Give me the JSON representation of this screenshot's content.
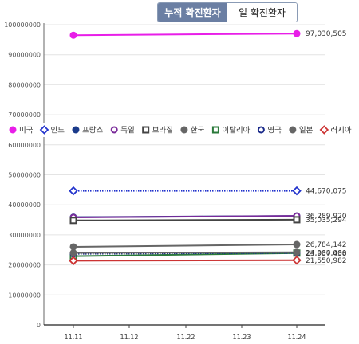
{
  "tabs": [
    {
      "label": "누적 확진환자",
      "active": true
    },
    {
      "label": "일 확진환자",
      "active": false
    }
  ],
  "chart_data": {
    "type": "line",
    "x": [
      "11.11",
      "11.12",
      "11.22",
      "11.23",
      "11.24"
    ],
    "ylim": [
      0,
      100000000
    ],
    "yticks": [
      0,
      10000000,
      20000000,
      30000000,
      40000000,
      50000000,
      60000000,
      70000000,
      80000000,
      90000000,
      100000000
    ],
    "legend_position": "middle",
    "series": [
      {
        "name": "미국",
        "color": "#e81ee8",
        "marker": "filled-circle",
        "style": "solid",
        "points": [
          [
            0,
            96500000
          ],
          [
            4,
            97030505
          ]
        ],
        "end_label": "97,030,505"
      },
      {
        "name": "인도",
        "color": "#2233cc",
        "marker": "open-diamond",
        "style": "dotted",
        "points": [
          [
            0,
            44670075
          ],
          [
            4,
            44670075
          ]
        ],
        "end_label": "44,670,075"
      },
      {
        "name": "프랑스",
        "color": "#1a3a8a",
        "marker": "filled-circle",
        "style": "solid",
        "points": [
          [
            0,
            35900000
          ],
          [
            4,
            36289920
          ]
        ],
        "end_label": "36,289,920"
      },
      {
        "name": "독일",
        "color": "#7a2a9a",
        "marker": "open-circle",
        "style": "solid",
        "points": [
          [
            0,
            35800000
          ],
          [
            4,
            36300000
          ]
        ],
        "end_label": ""
      },
      {
        "name": "브라질",
        "color": "#444444",
        "marker": "open-square",
        "style": "solid",
        "points": [
          [
            0,
            34800000
          ],
          [
            4,
            35035294
          ]
        ],
        "end_label": "35,035,294"
      },
      {
        "name": "한국",
        "color": "#666666",
        "marker": "filled-circle",
        "style": "solid",
        "points": [
          [
            0,
            26000000
          ],
          [
            4,
            26784142
          ]
        ],
        "end_label": "26,784,142"
      },
      {
        "name": "이탈리아",
        "color": "#2a7a3a",
        "marker": "open-square",
        "style": "solid",
        "points": [
          [
            0,
            22900000
          ],
          [
            4,
            23937438
          ]
        ],
        "end_label": "23,937,438"
      },
      {
        "name": "영국",
        "color": "#1a2a8a",
        "marker": "open-circle",
        "style": "dotted",
        "points": [
          [
            0,
            23700000
          ],
          [
            4,
            24000000
          ]
        ],
        "end_label": "24,000,000"
      },
      {
        "name": "일본",
        "color": "#666666",
        "marker": "filled-circle",
        "style": "solid",
        "points": [
          [
            0,
            24000000
          ],
          [
            4,
            24200000
          ]
        ],
        "end_label": ""
      },
      {
        "name": "러시아",
        "color": "#cc3333",
        "marker": "open-diamond",
        "style": "solid",
        "points": [
          [
            0,
            21400000
          ],
          [
            4,
            21550982
          ]
        ],
        "end_label": "21,550,982"
      }
    ]
  }
}
